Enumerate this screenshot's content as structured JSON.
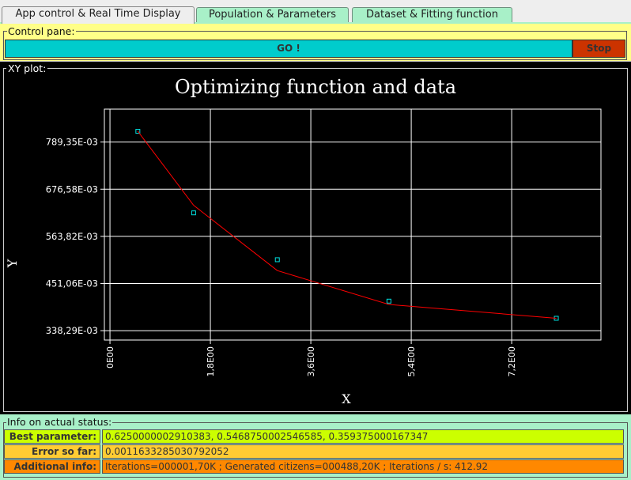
{
  "tabs": [
    {
      "label": "App control & Real Time Display",
      "active": true
    },
    {
      "label": "Population & Parameters",
      "active": false
    },
    {
      "label": "Dataset & Fitting function",
      "active": false
    }
  ],
  "control": {
    "legend": "Control pane:",
    "go_label": "GO !",
    "stop_label": "Stop"
  },
  "plot": {
    "legend": "XY plot:"
  },
  "chart_data": {
    "type": "scatter",
    "title": "Optimizing function and data",
    "xlabel": "X",
    "ylabel": "Y",
    "x_ticks": [
      "0E00",
      "1,8E00",
      "3,6E00",
      "5,4E00",
      "7,2E00"
    ],
    "y_ticks": [
      "338,29E-03",
      "451,06E-03",
      "563,82E-03",
      "676,58E-03",
      "789,35E-03"
    ],
    "xlim": [
      -0.1,
      8.8
    ],
    "ylim": [
      316,
      868
    ],
    "series": [
      {
        "kind": "points",
        "color": "#00e0e0",
        "x": [
          0.5,
          1.5,
          3.0,
          5.0,
          8.0
        ],
        "y": [
          815,
          620,
          508,
          409,
          368
        ]
      },
      {
        "kind": "line",
        "color": "#ff0000",
        "x": [
          0.5,
          1.5,
          3.0,
          5.0,
          8.0
        ],
        "y": [
          815,
          638,
          482,
          401,
          368
        ]
      }
    ]
  },
  "info": {
    "legend": "Info on actual status:",
    "rows": [
      {
        "label": "Best parameter:",
        "value": "0.6250000002910383, 0.5468750002546585, 0.359375000167347",
        "color": "#ccff00"
      },
      {
        "label": "Error so far:",
        "value": "0.0011633285030792052",
        "color": "#ffcc33"
      },
      {
        "label": "Additional info:",
        "value": "Iterations=000001,70K ; Generated citizens=000488,20K ; Iterations / s: 412.92",
        "color": "#ff8800"
      }
    ]
  }
}
